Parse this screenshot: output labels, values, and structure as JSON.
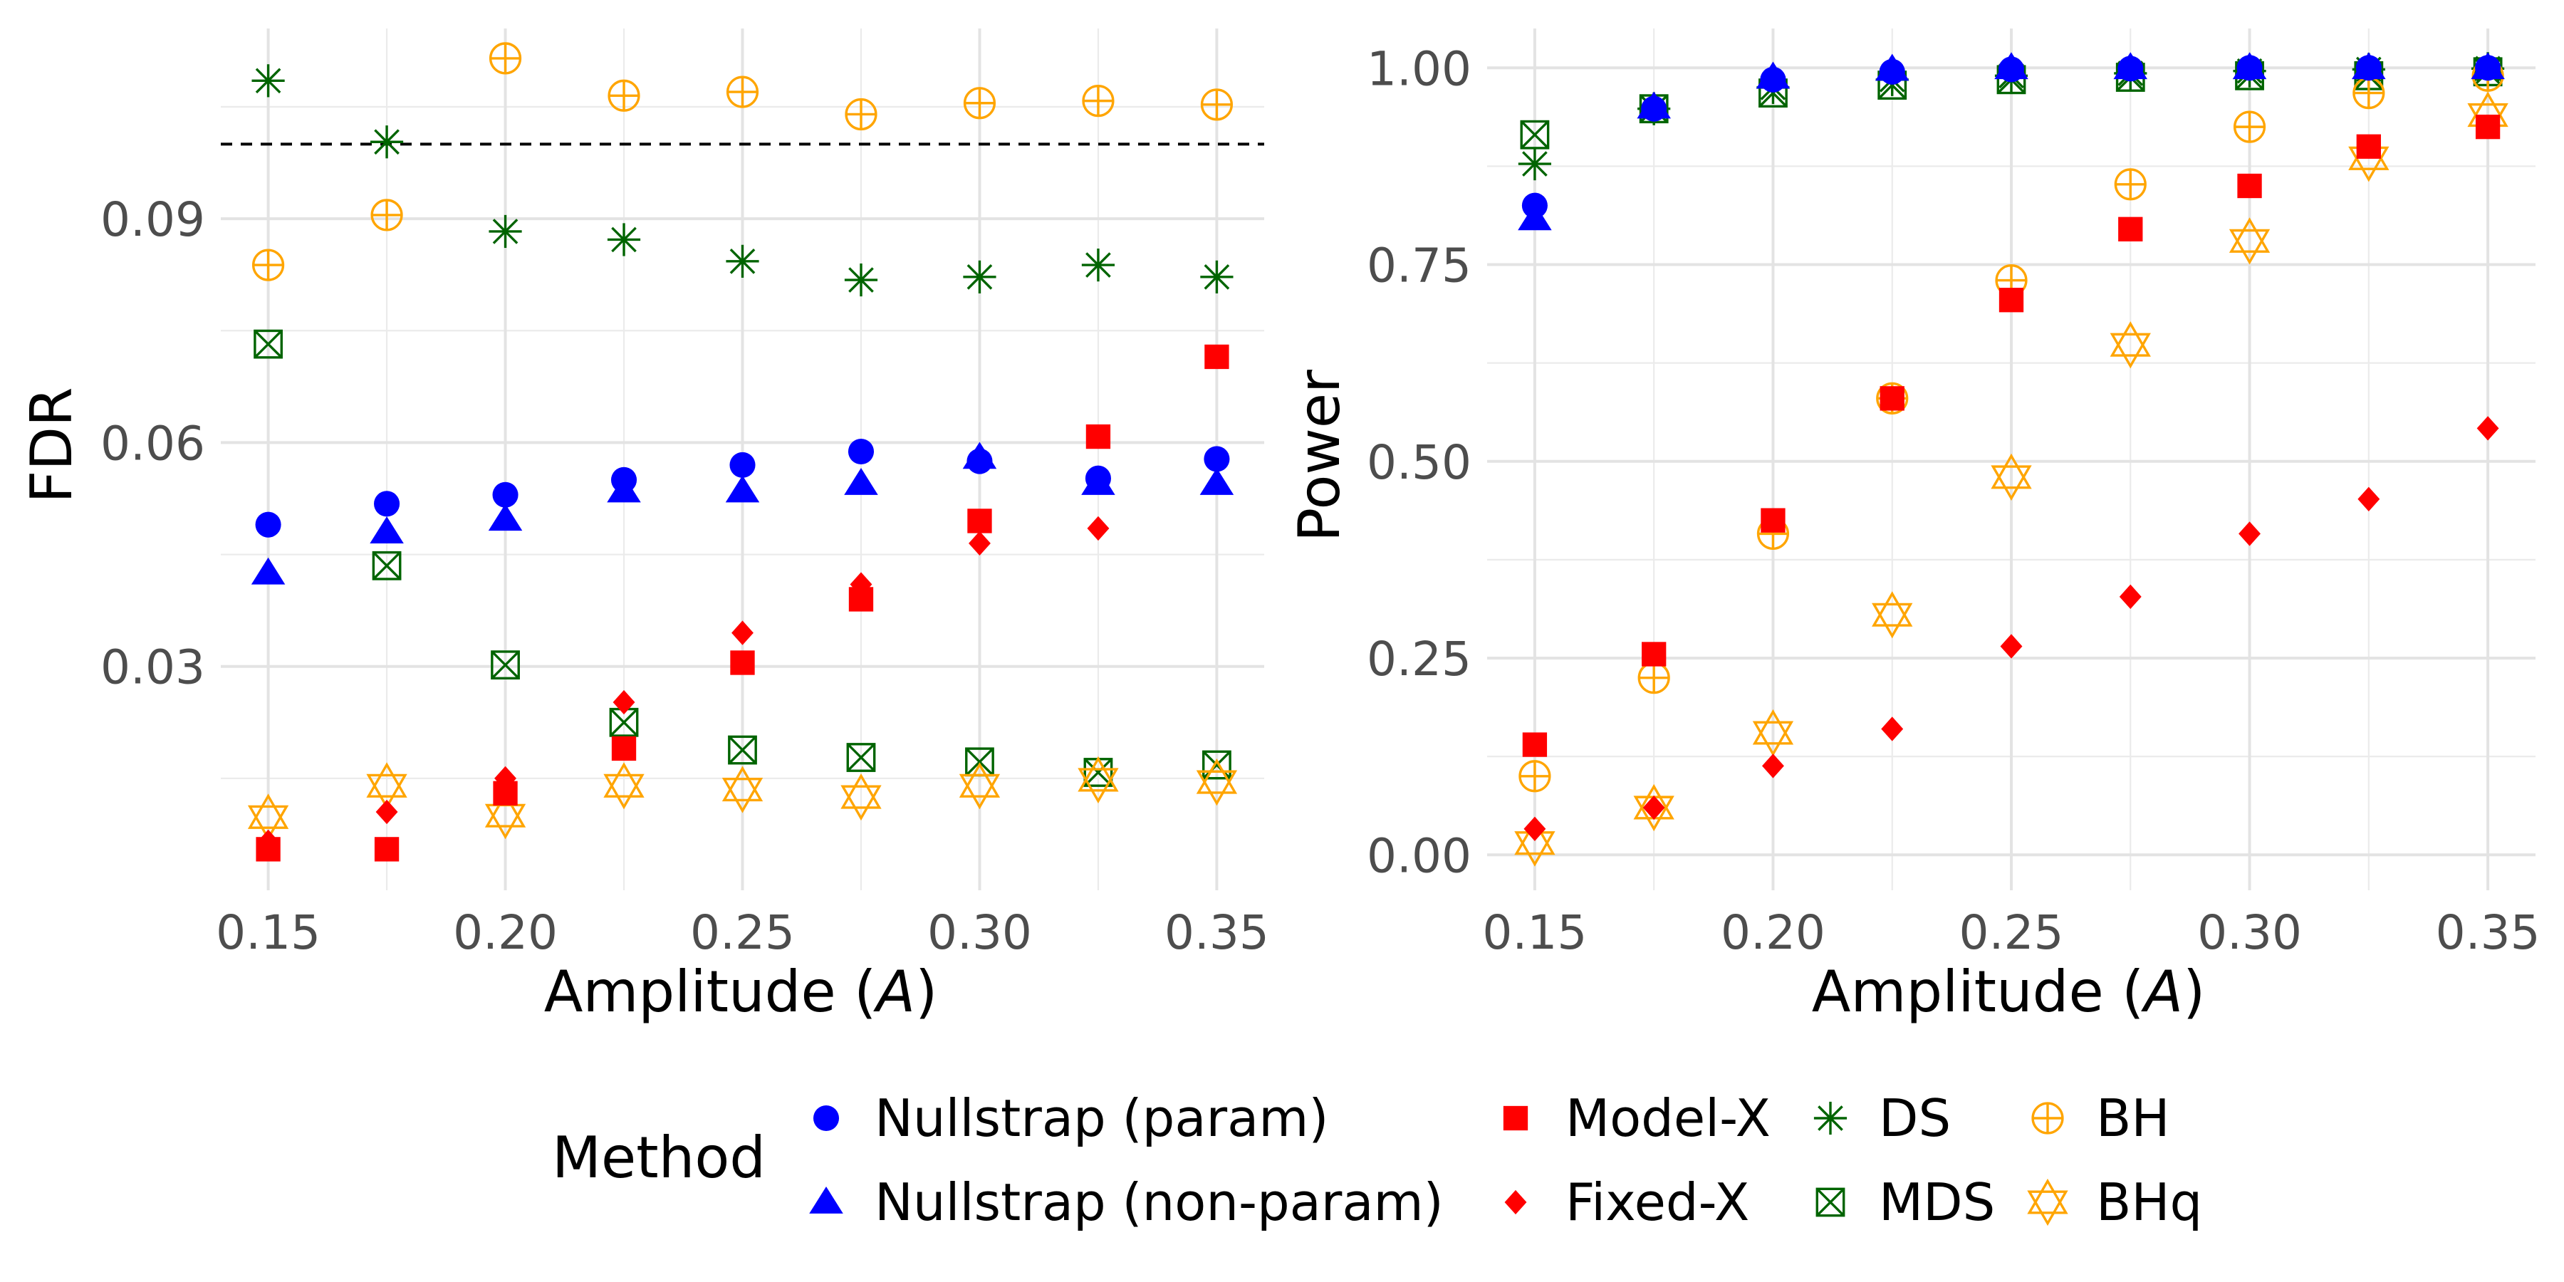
{
  "figure": {
    "type": "scatter",
    "panel_count": 2
  },
  "chart_data": [
    {
      "type": "scatter",
      "panel": "left",
      "xlabel": "Amplitude",
      "xlabel_symbol": "A",
      "ylabel": "FDR",
      "x": [
        0.15,
        0.175,
        0.2,
        0.225,
        0.25,
        0.275,
        0.3,
        0.325,
        0.35
      ],
      "xlim": [
        0.14,
        0.36
      ],
      "ylim": [
        0.0,
        0.1155
      ],
      "xticks": [
        0.15,
        0.2,
        0.25,
        0.3,
        0.35
      ],
      "xtick_labels": [
        "0.15",
        "0.20",
        "0.25",
        "0.30",
        "0.35"
      ],
      "yticks": [
        0.03,
        0.06,
        0.09
      ],
      "ytick_labels": [
        "0.03",
        "0.06",
        "0.09"
      ],
      "grid": true,
      "reference_line": {
        "y": 0.1,
        "style": "dashed",
        "color": "#000000"
      },
      "series": [
        {
          "name": "Nullstrap (param)",
          "values": [
            0.049,
            0.0518,
            0.053,
            0.055,
            0.057,
            0.0588,
            0.0575,
            0.0552,
            0.0578
          ]
        },
        {
          "name": "Nullstrap (non-param)",
          "values": [
            0.0425,
            0.048,
            0.0497,
            0.0535,
            0.0535,
            0.0545,
            0.058,
            0.0545,
            0.0545
          ]
        },
        {
          "name": "Model-X",
          "values": [
            0.0055,
            0.0055,
            0.013,
            0.019,
            0.0305,
            0.039,
            0.0495,
            0.0608,
            0.0715
          ]
        },
        {
          "name": "Fixed-X",
          "values": [
            0.0065,
            0.0105,
            0.015,
            0.0252,
            0.0345,
            0.041,
            0.0465,
            0.0485,
            0.0575
          ]
        },
        {
          "name": "DS",
          "values": [
            0.1085,
            0.1003,
            0.0883,
            0.0872,
            0.0843,
            0.0818,
            0.0822,
            0.0838,
            0.0822
          ]
        },
        {
          "name": "MDS",
          "values": [
            0.0732,
            0.0435,
            0.0302,
            0.0225,
            0.0188,
            0.0178,
            0.0172,
            0.0158,
            0.0168
          ]
        },
        {
          "name": "BH",
          "values": [
            0.0838,
            0.0905,
            0.1115,
            0.1065,
            0.107,
            0.104,
            0.1055,
            0.1058,
            0.1053
          ]
        },
        {
          "name": "BHq",
          "values": [
            0.0098,
            0.014,
            0.01,
            0.014,
            0.0135,
            0.0125,
            0.014,
            0.0148,
            0.0145
          ]
        }
      ]
    },
    {
      "type": "scatter",
      "panel": "right",
      "xlabel": "Amplitude",
      "xlabel_symbol": "A",
      "ylabel": "Power",
      "x": [
        0.15,
        0.175,
        0.2,
        0.225,
        0.25,
        0.275,
        0.3,
        0.325,
        0.35
      ],
      "xlim": [
        0.14,
        0.36
      ],
      "ylim": [
        -0.045,
        1.05
      ],
      "xticks": [
        0.15,
        0.2,
        0.25,
        0.3,
        0.35
      ],
      "xtick_labels": [
        "0.15",
        "0.20",
        "0.25",
        "0.30",
        "0.35"
      ],
      "yticks": [
        0.0,
        0.25,
        0.5,
        0.75,
        1.0
      ],
      "ytick_labels": [
        "0.00",
        "0.25",
        "0.50",
        "0.75",
        "1.00"
      ],
      "grid": true,
      "series": [
        {
          "name": "Nullstrap (param)",
          "values": [
            0.825,
            0.948,
            0.985,
            0.995,
            0.998,
            0.999,
            1.0,
            1.0,
            1.0
          ]
        },
        {
          "name": "Nullstrap (non-param)",
          "values": [
            0.808,
            0.95,
            0.988,
            0.998,
            1.0,
            1.0,
            1.0,
            1.0,
            1.0
          ]
        },
        {
          "name": "Model-X",
          "values": [
            0.14,
            0.255,
            0.425,
            0.58,
            0.705,
            0.795,
            0.85,
            0.9,
            0.925
          ]
        },
        {
          "name": "Fixed-X",
          "values": [
            0.033,
            0.06,
            0.113,
            0.16,
            0.265,
            0.328,
            0.408,
            0.452,
            0.542
          ]
        },
        {
          "name": "DS",
          "values": [
            0.878,
            0.948,
            0.975,
            0.985,
            0.99,
            0.993,
            0.996,
            0.998,
            0.999
          ]
        },
        {
          "name": "MDS",
          "values": [
            0.915,
            0.948,
            0.968,
            0.978,
            0.985,
            0.988,
            0.99,
            0.99,
            0.995
          ]
        },
        {
          "name": "BH",
          "values": [
            0.1,
            0.225,
            0.408,
            0.58,
            0.73,
            0.852,
            0.925,
            0.968,
            0.99
          ]
        },
        {
          "name": "BHq",
          "values": [
            0.015,
            0.06,
            0.155,
            0.305,
            0.48,
            0.648,
            0.78,
            0.885,
            0.94
          ]
        }
      ]
    }
  ],
  "legend": {
    "title": "Method",
    "placement": "bottom",
    "items": [
      {
        "name": "Nullstrap (param)",
        "shape": "circle",
        "color": "#0000ff"
      },
      {
        "name": "Nullstrap (non-param)",
        "shape": "triangle",
        "color": "#0000ff"
      },
      {
        "name": "Model-X",
        "shape": "square",
        "color": "#ff0000"
      },
      {
        "name": "Fixed-X",
        "shape": "diamond",
        "color": "#ff0000"
      },
      {
        "name": "DS",
        "shape": "asterisk",
        "color": "#006400"
      },
      {
        "name": "MDS",
        "shape": "square-x",
        "color": "#006400"
      },
      {
        "name": "BH",
        "shape": "circle-plus",
        "color": "#ffa500"
      },
      {
        "name": "BHq",
        "shape": "star-of-david",
        "color": "#ffa500"
      }
    ]
  }
}
